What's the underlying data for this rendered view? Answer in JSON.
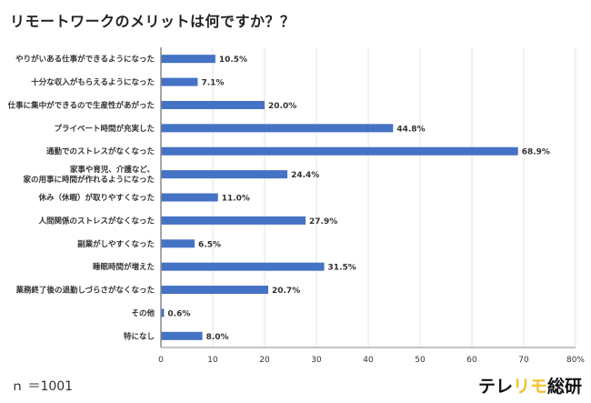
{
  "title": "リモートワークのメリットは何ですか？？",
  "sample_size": "ｎ ＝1001",
  "logo": {
    "part1": "テレ",
    "part2": "リモ",
    "part3": "総研",
    "accent": "#f2c12e"
  },
  "chart_data": {
    "type": "bar",
    "orientation": "horizontal",
    "title": "リモートワークのメリットは何ですか？？",
    "categories": [
      [
        "やりがいある仕事ができるようになった"
      ],
      [
        "十分な収入がもらえるようになった"
      ],
      [
        "仕事に集中ができるので生産性があがった"
      ],
      [
        "プライベート時間が充実した"
      ],
      [
        "通勤でのストレスがなくなった"
      ],
      [
        "家事や育児、介護など、",
        "家の用事に時間が作れるようになった"
      ],
      [
        "休み（休暇）が取りやすくなった"
      ],
      [
        "人間関係のストレスがなくなった"
      ],
      [
        "副業がしやすくなった"
      ],
      [
        "睡眠時間が増えた"
      ],
      [
        "業務終了後の退勤しづらさがなくなった"
      ],
      [
        "その他"
      ],
      [
        "特になし"
      ]
    ],
    "values": [
      10.5,
      7.1,
      20.0,
      44.8,
      68.9,
      24.4,
      11.0,
      27.9,
      6.5,
      31.5,
      20.7,
      0.6,
      8.0
    ],
    "value_labels": [
      "10.5%",
      "7.1%",
      "20.0%",
      "44.8%",
      "68.9%",
      "24.4%",
      "11.0%",
      "27.9%",
      "6.5%",
      "31.5%",
      "20.7%",
      "0.6%",
      "8.0%"
    ],
    "xlim": [
      0,
      80
    ],
    "x_ticks": [
      "0",
      "10",
      "20",
      "30",
      "40",
      "50",
      "60",
      "70",
      "80%"
    ],
    "grid": true,
    "bar_color": "#4472c4"
  }
}
